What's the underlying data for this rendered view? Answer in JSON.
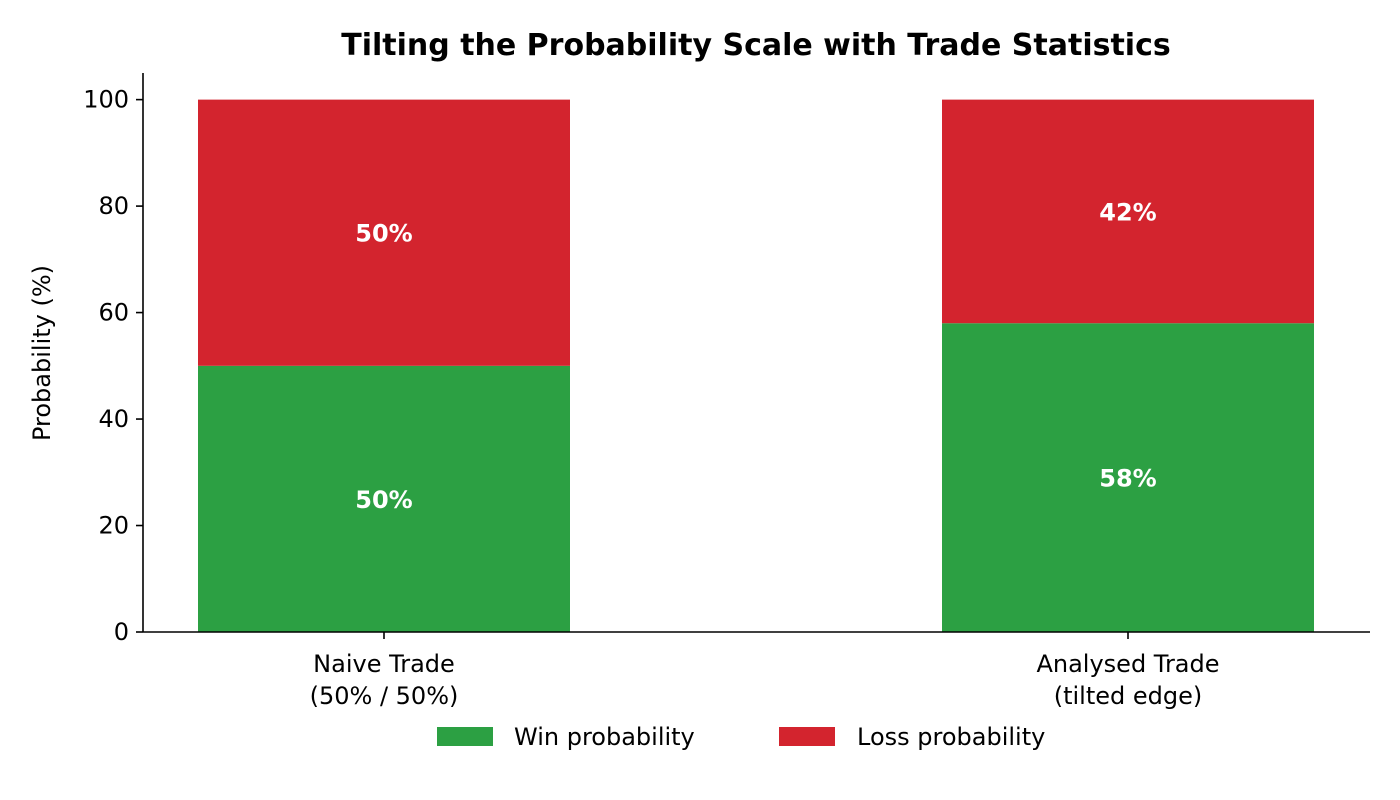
{
  "chart_data": {
    "type": "bar",
    "stacked": true,
    "title": "Tilting the Probability Scale with Trade Statistics",
    "xlabel": "",
    "ylabel": "Probability (%)",
    "ylim": [
      0,
      105
    ],
    "yticks": [
      0,
      20,
      40,
      60,
      80,
      100
    ],
    "grid": false,
    "legend": "bottom-center",
    "categories": [
      [
        "Naive Trade",
        "(50% / 50%)"
      ],
      [
        "Analysed Trade",
        "(tilted edge)"
      ]
    ],
    "series": [
      {
        "name": "Win probability",
        "color": "#2ca043",
        "values": [
          50,
          58
        ],
        "labels": [
          "50%",
          "58%"
        ]
      },
      {
        "name": "Loss probability",
        "color": "#d3242e",
        "values": [
          50,
          42
        ],
        "labels": [
          "50%",
          "42%"
        ]
      }
    ]
  }
}
